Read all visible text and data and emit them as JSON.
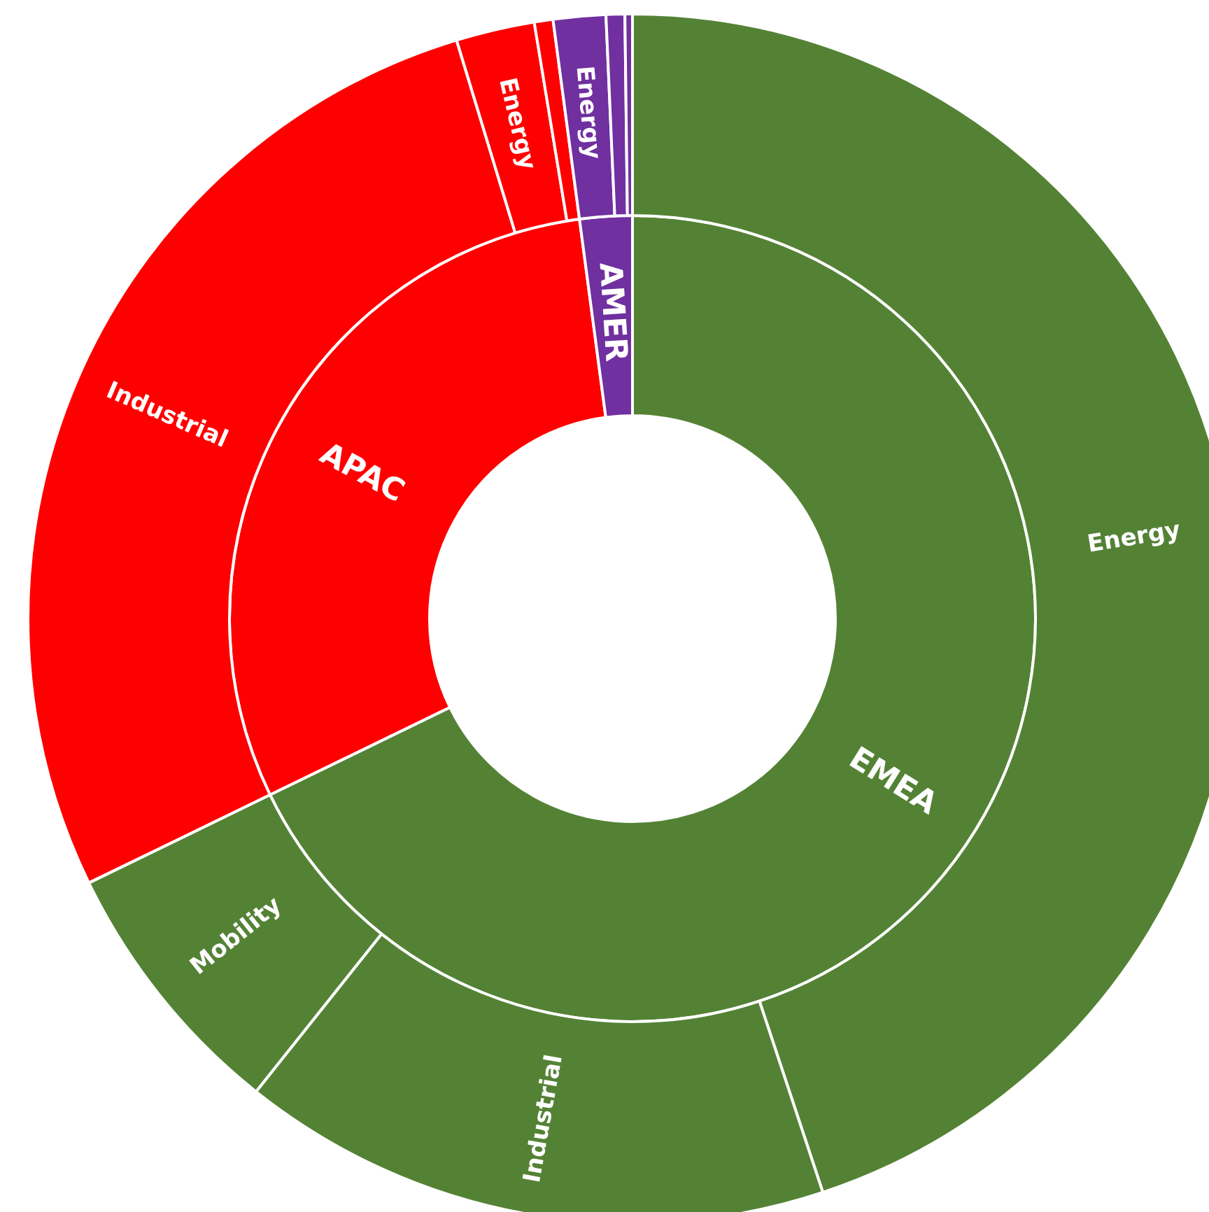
{
  "chart_data": [
    {
      "type": "donut",
      "legend": false,
      "categories": [
        "EMEA",
        "APAC",
        "AMER"
      ],
      "values": [
        67.8,
        30.1,
        2.1
      ],
      "colors": [
        "#548235",
        "#ff0000",
        "#7030a0"
      ]
    },
    {
      "type": "donut",
      "legend": false,
      "categories": [
        "Energy",
        "Industrial",
        "Mobility",
        "Industrial",
        "Energy",
        null,
        "Energy",
        null,
        null
      ],
      "values": [
        44.9,
        15.8,
        7.1,
        27.5,
        2.1,
        0.5,
        1.4,
        0.5,
        0.2
      ],
      "colors": [
        "#548235",
        "#548235",
        "#548235",
        "#ff0000",
        "#ff0000",
        "#ff0000",
        "#7030a0",
        "#7030a0",
        "#7030a0"
      ]
    }
  ]
}
